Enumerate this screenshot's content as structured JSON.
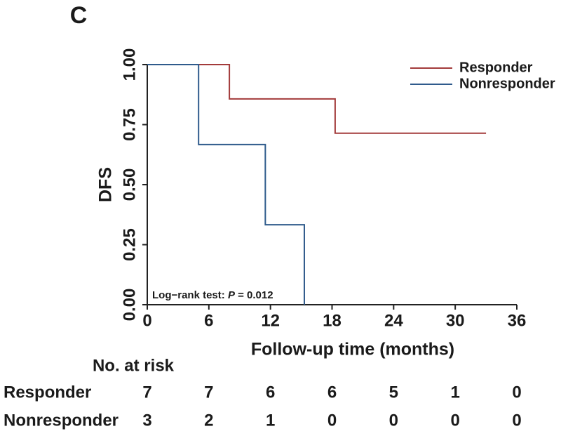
{
  "chart_data": {
    "type": "step",
    "panel_label": "C",
    "xlabel": "Follow-up time (months)",
    "ylabel": "DFS",
    "xlim": [
      0,
      36
    ],
    "ylim": [
      0,
      1
    ],
    "xticks": [
      0,
      6,
      12,
      18,
      24,
      30,
      36
    ],
    "yticks": [
      {
        "value": 0,
        "label": "0.00"
      },
      {
        "value": 0.25,
        "label": "0.25"
      },
      {
        "value": 0.5,
        "label": "0.50"
      },
      {
        "value": 0.75,
        "label": "0.75"
      },
      {
        "value": 1,
        "label": "1.00"
      }
    ],
    "legend": "upper right",
    "series": [
      {
        "name": "Responder",
        "color": "#a33b3b",
        "x": [
          0,
          8,
          18.3,
          33
        ],
        "values": [
          1,
          0.857,
          0.714,
          0.714
        ]
      },
      {
        "name": "Nonresponder",
        "color": "#2f5b8c",
        "x": [
          0,
          5,
          11.5,
          15.3
        ],
        "values": [
          1,
          0.667,
          0.333,
          0
        ]
      }
    ],
    "annotation": [
      "Log−rank test: ",
      "P",
      " = 0.012"
    ],
    "risk_table": {
      "title": "No. at risk",
      "rows": [
        {
          "name": "Responder",
          "values": [
            7,
            7,
            6,
            6,
            5,
            1,
            0
          ]
        },
        {
          "name": "Nonresponder",
          "values": [
            3,
            2,
            1,
            0,
            0,
            0,
            0
          ]
        }
      ]
    }
  }
}
